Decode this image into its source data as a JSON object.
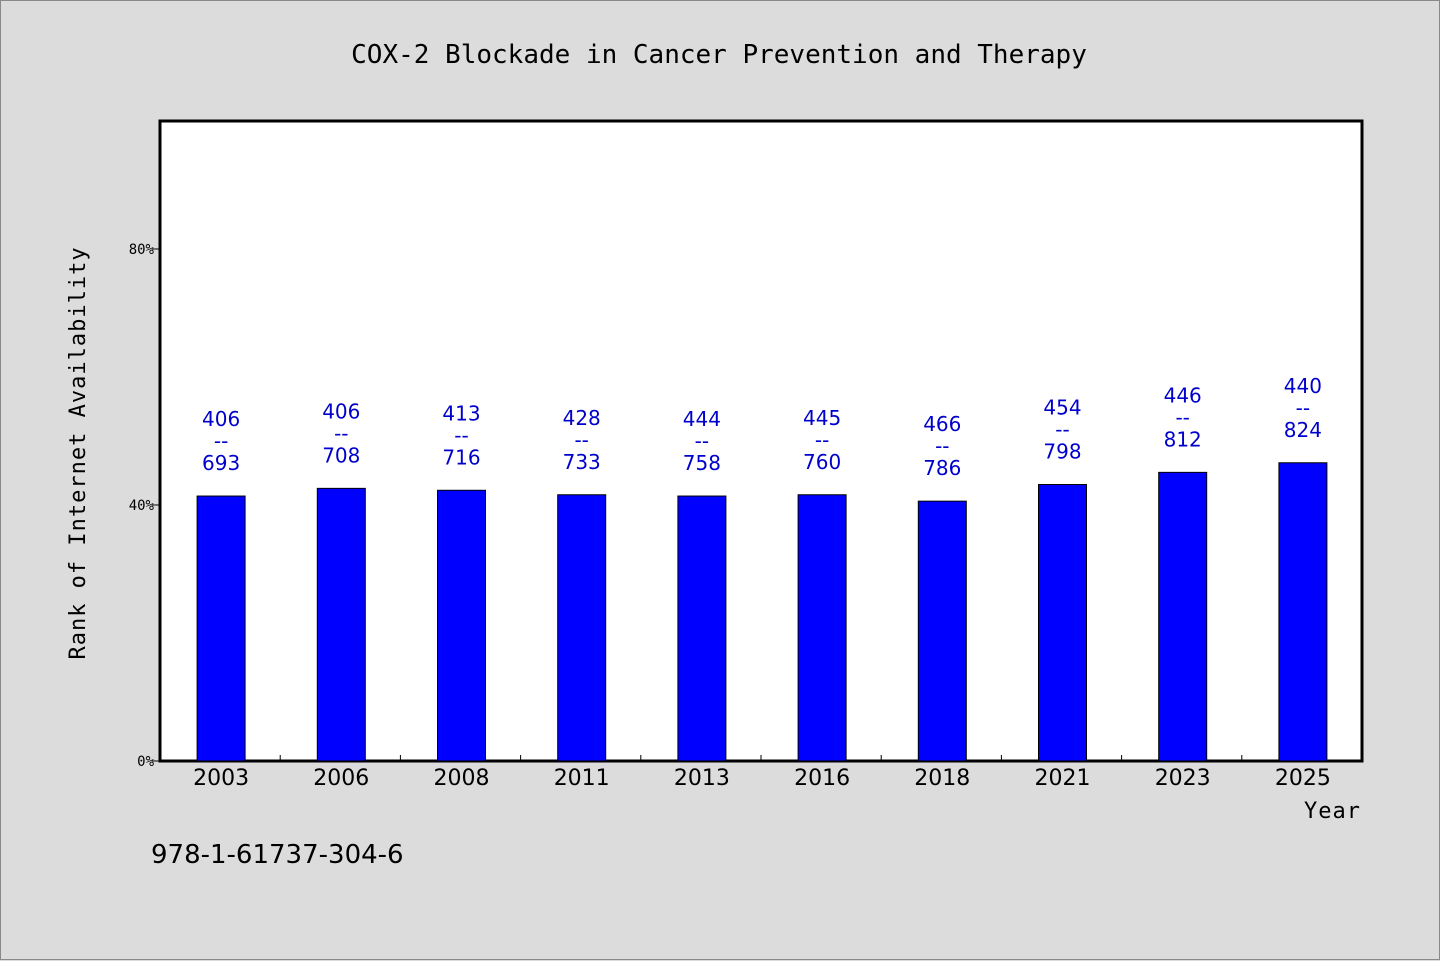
{
  "chart_data": {
    "type": "bar",
    "title": "COX-2 Blockade in Cancer Prevention and Therapy",
    "xlabel": "Year",
    "ylabel": "Rank of Internet Availability",
    "categories": [
      "2003",
      "2006",
      "2008",
      "2011",
      "2013",
      "2016",
      "2018",
      "2021",
      "2023",
      "2025"
    ],
    "values": [
      41.4,
      42.6,
      42.3,
      41.6,
      41.4,
      41.6,
      40.6,
      43.2,
      45.1,
      46.6
    ],
    "value_labels": [
      [
        "406",
        "--",
        "693"
      ],
      [
        "406",
        "--",
        "708"
      ],
      [
        "413",
        "--",
        "716"
      ],
      [
        "428",
        "--",
        "733"
      ],
      [
        "444",
        "--",
        "758"
      ],
      [
        "445",
        "--",
        "760"
      ],
      [
        "466",
        "--",
        "786"
      ],
      [
        "454",
        "--",
        "798"
      ],
      [
        "446",
        "--",
        "812"
      ],
      [
        "440",
        "--",
        "824"
      ]
    ],
    "ylim": [
      0,
      100
    ],
    "yticks": [
      0,
      40,
      80
    ],
    "ytick_labels": [
      "0%",
      "40%",
      "80%"
    ],
    "grid": false,
    "bar_color": "#0000ff",
    "label_color": "#0000cc"
  },
  "footnote": "978-1-61737-304-6"
}
